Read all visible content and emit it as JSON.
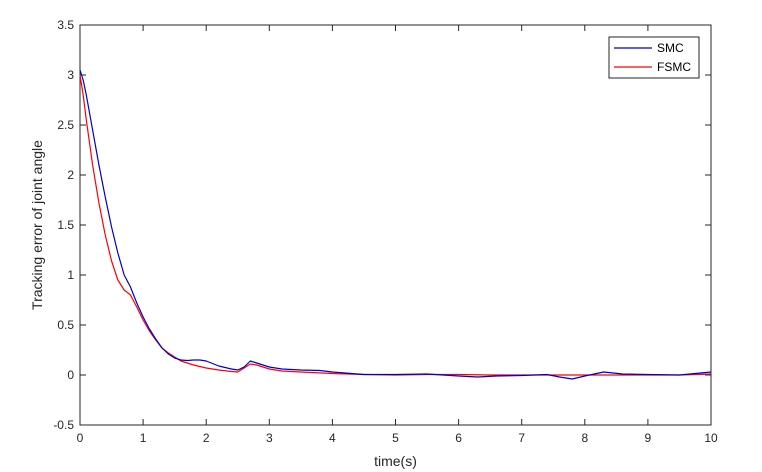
{
  "chart_data": {
    "type": "line",
    "title": "",
    "xlabel": "time(s)",
    "ylabel": "Tracking error of joint angle",
    "xlim": [
      0,
      10
    ],
    "ylim": [
      -0.5,
      3.5
    ],
    "xticks": [
      0,
      1,
      2,
      3,
      4,
      5,
      6,
      7,
      8,
      9,
      10
    ],
    "yticks": [
      -0.5,
      0,
      0.5,
      1,
      1.5,
      2,
      2.5,
      3,
      3.5
    ],
    "grid": false,
    "legend_position": "top-right",
    "series": [
      {
        "name": "SMC",
        "color": "#0000cc",
        "x": [
          0,
          0.05,
          0.1,
          0.2,
          0.3,
          0.4,
          0.5,
          0.6,
          0.7,
          0.8,
          0.9,
          1.0,
          1.1,
          1.2,
          1.3,
          1.4,
          1.5,
          1.6,
          1.7,
          1.8,
          1.9,
          2.0,
          2.2,
          2.4,
          2.5,
          2.6,
          2.7,
          2.8,
          3.0,
          3.2,
          3.5,
          3.8,
          4.0,
          4.3,
          4.5,
          5.0,
          5.5,
          6.0,
          6.3,
          6.6,
          7.0,
          7.4,
          7.6,
          7.8,
          8.0,
          8.3,
          8.6,
          9.0,
          9.5,
          10.0
        ],
        "values": [
          3.05,
          2.95,
          2.8,
          2.45,
          2.1,
          1.78,
          1.48,
          1.22,
          1.0,
          0.88,
          0.72,
          0.58,
          0.46,
          0.36,
          0.27,
          0.21,
          0.17,
          0.15,
          0.145,
          0.15,
          0.15,
          0.14,
          0.09,
          0.06,
          0.05,
          0.08,
          0.14,
          0.12,
          0.08,
          0.06,
          0.05,
          0.045,
          0.03,
          0.015,
          0.005,
          0.005,
          0.01,
          -0.01,
          -0.02,
          -0.01,
          -0.005,
          0.005,
          -0.02,
          -0.04,
          -0.01,
          0.03,
          0.01,
          0.005,
          0.0,
          0.03
        ]
      },
      {
        "name": "FSMC",
        "color": "#ff0000",
        "x": [
          0,
          0.05,
          0.1,
          0.2,
          0.3,
          0.4,
          0.5,
          0.6,
          0.7,
          0.8,
          0.9,
          1.0,
          1.1,
          1.2,
          1.3,
          1.4,
          1.5,
          1.6,
          1.8,
          2.0,
          2.2,
          2.4,
          2.5,
          2.6,
          2.7,
          2.8,
          3.0,
          3.2,
          3.5,
          4.0,
          4.5,
          5.0,
          5.5,
          6.0,
          6.5,
          7.0,
          7.5,
          8.0,
          8.5,
          9.0,
          9.5,
          10.0
        ],
        "values": [
          3.0,
          2.8,
          2.55,
          2.1,
          1.72,
          1.4,
          1.14,
          0.95,
          0.85,
          0.8,
          0.68,
          0.55,
          0.44,
          0.35,
          0.27,
          0.22,
          0.18,
          0.14,
          0.1,
          0.07,
          0.05,
          0.035,
          0.03,
          0.07,
          0.11,
          0.1,
          0.06,
          0.04,
          0.03,
          0.015,
          0.005,
          0.0,
          0.005,
          0.005,
          0.0,
          0.0,
          0.0,
          0.0,
          0.0,
          0.0,
          0.0,
          0.01
        ]
      }
    ]
  }
}
